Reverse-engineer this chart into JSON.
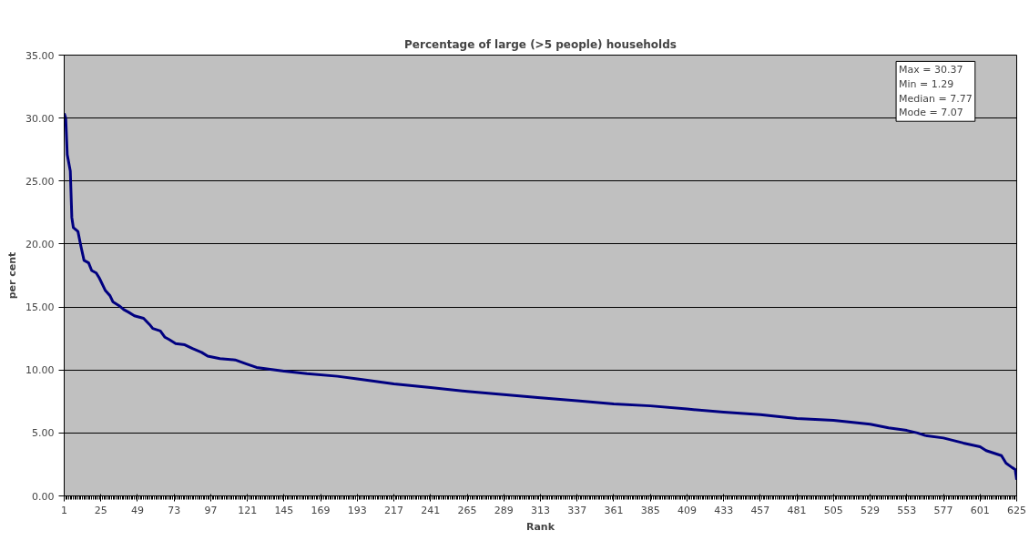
{
  "chart_data": {
    "type": "line",
    "title": "Percentage of large (>5 people) households",
    "xlabel": "Rank",
    "ylabel": "per cent",
    "annotations": [
      "Max = 30.37",
      "Min =  1.29",
      "Median = 7.77",
      "Mode =  7.07"
    ],
    "x": [
      1,
      2,
      3,
      5,
      6,
      7,
      10,
      12,
      14,
      17,
      19,
      22,
      24,
      26,
      28,
      31,
      33,
      37,
      40,
      43,
      47,
      53,
      57,
      59,
      64,
      67,
      70,
      74,
      80,
      85,
      91,
      95,
      103,
      113,
      120,
      127,
      145,
      160,
      180,
      193,
      205,
      217,
      241,
      265,
      289,
      313,
      337,
      361,
      385,
      409,
      433,
      457,
      481,
      505,
      529,
      541,
      553,
      560,
      565,
      577,
      590,
      601,
      605,
      615,
      618,
      622,
      624,
      625
    ],
    "series": [
      {
        "color": "#000080",
        "values": [
          30.37,
          30.0,
          27.1,
          25.8,
          22.1,
          21.3,
          21.0,
          19.8,
          18.7,
          18.5,
          17.9,
          17.7,
          17.3,
          16.8,
          16.3,
          15.9,
          15.4,
          15.1,
          14.8,
          14.6,
          14.3,
          14.1,
          13.6,
          13.3,
          13.1,
          12.6,
          12.4,
          12.1,
          12.0,
          11.7,
          11.4,
          11.1,
          10.9,
          10.8,
          10.5,
          10.2,
          9.9,
          9.7,
          9.5,
          9.3,
          9.1,
          8.9,
          8.6,
          8.3,
          8.05,
          7.8,
          7.55,
          7.3,
          7.15,
          6.9,
          6.65,
          6.45,
          6.15,
          6.0,
          5.7,
          5.4,
          5.2,
          5.0,
          4.8,
          4.6,
          4.2,
          3.9,
          3.6,
          3.2,
          2.6,
          2.25,
          2.1,
          1.29
        ]
      }
    ],
    "xlim": [
      1,
      625
    ],
    "xticks": [
      1,
      25,
      49,
      73,
      97,
      121,
      145,
      169,
      193,
      217,
      241,
      265,
      289,
      313,
      337,
      361,
      385,
      409,
      433,
      457,
      481,
      505,
      529,
      553,
      577,
      601,
      625
    ],
    "ylim": [
      0,
      35
    ],
    "yticks": [
      {
        "value": 0,
        "label": "0.00"
      },
      {
        "value": 5,
        "label": "5.00"
      },
      {
        "value": 10,
        "label": "10.00"
      },
      {
        "value": 15,
        "label": "15.00"
      },
      {
        "value": 20,
        "label": "20.00"
      },
      {
        "value": 25,
        "label": "25.00"
      },
      {
        "value": 30,
        "label": "30.00"
      },
      {
        "value": 35,
        "label": "35.00"
      }
    ],
    "grid": "y",
    "marker": "none",
    "line_style": "solid"
  }
}
